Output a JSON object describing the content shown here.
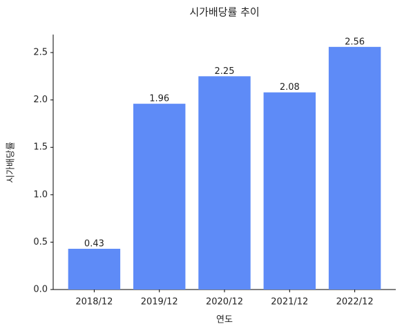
{
  "chart_data": {
    "type": "bar",
    "title": "시가배당률 추이",
    "x_label": "연도",
    "y_label": "시가배당률",
    "categories": [
      "2018/12",
      "2019/12",
      "2020/12",
      "2021/12",
      "2022/12"
    ],
    "values": [
      0.43,
      1.96,
      2.25,
      2.08,
      2.56
    ],
    "color": "#5e8bf7",
    "ylim": [
      0,
      2.69
    ],
    "yticks": [
      {
        "value": 0,
        "label": "0.0"
      },
      0.5,
      {
        "value": 1,
        "label": "1.0"
      },
      1.5,
      {
        "value": 2,
        "label": "2.0"
      },
      2.5
    ],
    "grid": false
  }
}
